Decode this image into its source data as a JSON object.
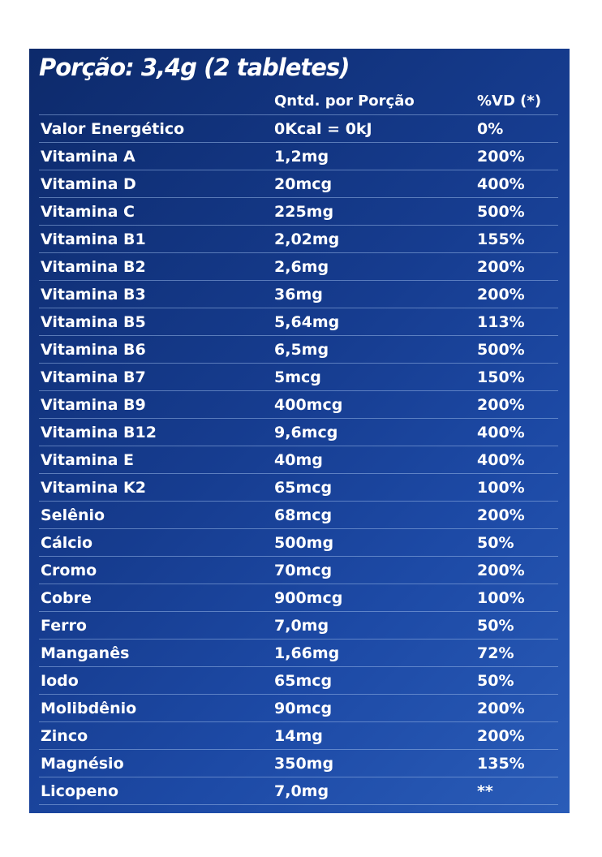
{
  "title": "Porção: 3,4g (2 tabletes)",
  "header": {
    "col1": "",
    "col2": "Qntd. por Porção",
    "col3": "%VD (*)"
  },
  "rows": [
    {
      "name": "Valor Energético",
      "amount": "0Kcal = 0kJ",
      "dv": "0%"
    },
    {
      "name": "Vitamina A",
      "amount": "1,2mg",
      "dv": "200%"
    },
    {
      "name": "Vitamina D",
      "amount": "20mcg",
      "dv": "400%"
    },
    {
      "name": "Vitamina C",
      "amount": "225mg",
      "dv": "500%"
    },
    {
      "name": "Vitamina B1",
      "amount": "2,02mg",
      "dv": "155%"
    },
    {
      "name": "Vitamina B2",
      "amount": "2,6mg",
      "dv": "200%"
    },
    {
      "name": "Vitamina B3",
      "amount": "36mg",
      "dv": "200%"
    },
    {
      "name": "Vitamina B5",
      "amount": "5,64mg",
      "dv": "113%"
    },
    {
      "name": "Vitamina B6",
      "amount": "6,5mg",
      "dv": "500%"
    },
    {
      "name": "Vitamina B7",
      "amount": "5mcg",
      "dv": "150%"
    },
    {
      "name": "Vitamina B9",
      "amount": "400mcg",
      "dv": "200%"
    },
    {
      "name": "Vitamina B12",
      "amount": "9,6mcg",
      "dv": "400%"
    },
    {
      "name": "Vitamina E",
      "amount": "40mg",
      "dv": "400%"
    },
    {
      "name": "Vitamina K2",
      "amount": "65mcg",
      "dv": "100%"
    },
    {
      "name": "Selênio",
      "amount": "68mcg",
      "dv": "200%"
    },
    {
      "name": "Cálcio",
      "amount": "500mg",
      "dv": "50%"
    },
    {
      "name": "Cromo",
      "amount": "70mcg",
      "dv": "200%"
    },
    {
      "name": "Cobre",
      "amount": "900mcg",
      "dv": "100%"
    },
    {
      "name": "Ferro",
      "amount": "7,0mg",
      "dv": "50%"
    },
    {
      "name": "Manganês",
      "amount": "1,66mg",
      "dv": "72%"
    },
    {
      "name": "Iodo",
      "amount": "65mcg",
      "dv": "50%"
    },
    {
      "name": "Molibdênio",
      "amount": "90mcg",
      "dv": "200%"
    },
    {
      "name": "Zinco",
      "amount": "14mg",
      "dv": "200%"
    },
    {
      "name": "Magnésio",
      "amount": "350mg",
      "dv": "135%"
    },
    {
      "name": "Licopeno",
      "amount": "7,0mg",
      "dv": "**"
    }
  ]
}
